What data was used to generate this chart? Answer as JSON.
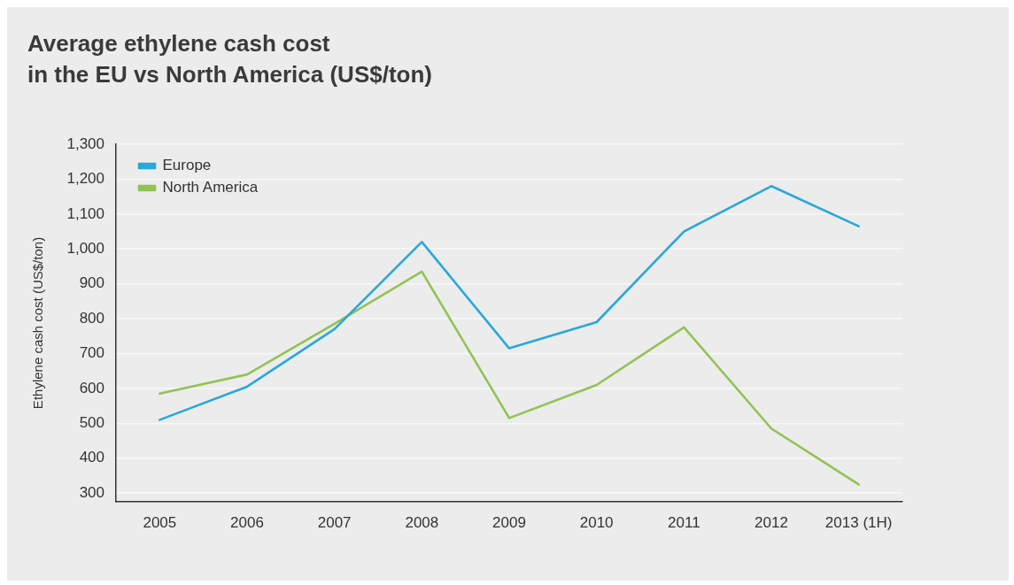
{
  "chart_data": {
    "type": "line",
    "title": "Average ethylene cash cost\nin the EU vs North America (US$/ton)",
    "ylabel": "Ethylene cash cost (US$/ton)",
    "categories": [
      "2005",
      "2006",
      "2007",
      "2008",
      "2009",
      "2010",
      "2011",
      "2012",
      "2013 (1H)"
    ],
    "series": [
      {
        "name": "Europe",
        "color": "#29a8da",
        "values": [
          510,
          605,
          770,
          1020,
          715,
          790,
          1050,
          1180,
          1065
        ]
      },
      {
        "name": "North America",
        "color": "#93c255",
        "values": [
          585,
          640,
          785,
          935,
          515,
          610,
          775,
          485,
          325
        ]
      }
    ],
    "ylim": [
      275,
      1300
    ],
    "yticks": [
      300,
      400,
      500,
      600,
      700,
      800,
      900,
      {
        "value": 1000,
        "label": "1,000"
      },
      {
        "value": 1100,
        "label": "1,100"
      },
      {
        "value": 1200,
        "label": "1,200"
      },
      {
        "value": 1300,
        "label": "1,300"
      }
    ],
    "grid": "y",
    "legend": "top left",
    "marker": "none",
    "line_style": "solid"
  }
}
